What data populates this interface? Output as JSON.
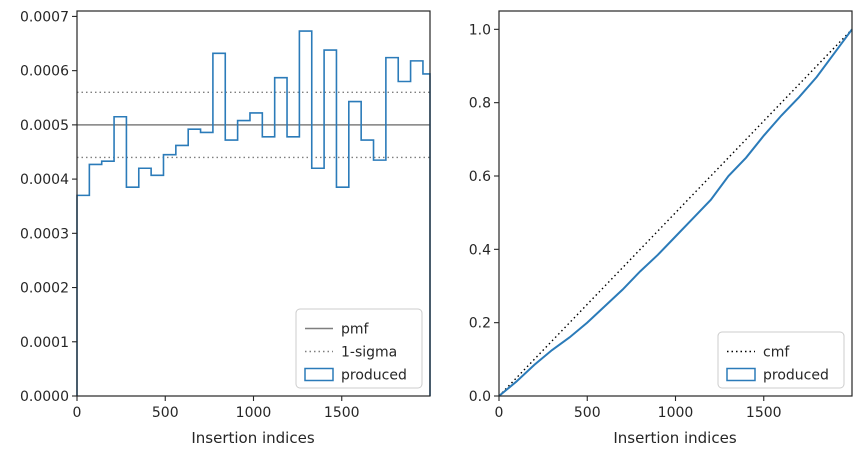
{
  "chart_data": [
    {
      "type": "step",
      "xlabel": "Insertion indices",
      "ylabel": "",
      "xlim": [
        0,
        2000
      ],
      "ylim": [
        0,
        0.00071
      ],
      "x_ticks": [
        0,
        500,
        1000,
        1500
      ],
      "x_tick_labels": [
        "0",
        "500",
        "1000",
        "1500"
      ],
      "y_ticks": [
        0,
        0.0001,
        0.0002,
        0.0003,
        0.0004,
        0.0005,
        0.0006,
        0.0007
      ],
      "y_tick_labels": [
        "0.0000",
        "0.0001",
        "0.0002",
        "0.0003",
        "0.0004",
        "0.0005",
        "0.0006",
        "0.0007"
      ],
      "hlines": [
        {
          "name": "pmf",
          "y": 0.0005,
          "style": "solid",
          "color": "#7f7f7f"
        },
        {
          "name": "1-sigma",
          "y": 0.00056,
          "style": "dotted",
          "color": "#7f7f7f"
        },
        {
          "name": "1-sigma",
          "y": 0.00044,
          "style": "dotted",
          "color": "#7f7f7f"
        }
      ],
      "histogram": {
        "name": "produced",
        "color": "#2b7bb9",
        "bin_edges": [
          0,
          70,
          140,
          210,
          280,
          350,
          420,
          490,
          560,
          630,
          700,
          770,
          840,
          910,
          980,
          1050,
          1120,
          1190,
          1260,
          1330,
          1400,
          1470,
          1540,
          1610,
          1680,
          1750,
          1820,
          1890,
          1960,
          2000
        ],
        "values": [
          0.00037,
          0.000427,
          0.000433,
          0.000515,
          0.000385,
          0.00042,
          0.000407,
          0.000445,
          0.000462,
          0.000492,
          0.000486,
          0.000632,
          0.000472,
          0.000508,
          0.000522,
          0.000478,
          0.000587,
          0.000478,
          0.000673,
          0.00042,
          0.000638,
          0.000385,
          0.000543,
          0.000472,
          0.000435,
          0.000624,
          0.00058,
          0.000618,
          0.000594
        ]
      },
      "legend": {
        "location": "lower right",
        "entries": [
          {
            "label": "pmf",
            "style": "solid-line"
          },
          {
            "label": "1-sigma",
            "style": "dotted-line"
          },
          {
            "label": "produced",
            "style": "step-box"
          }
        ]
      },
      "grid": false
    },
    {
      "type": "line",
      "xlabel": "Insertion indices",
      "ylabel": "",
      "xlim": [
        0,
        2000
      ],
      "ylim": [
        0,
        1.05
      ],
      "x_ticks": [
        0,
        500,
        1000,
        1500
      ],
      "x_tick_labels": [
        "0",
        "500",
        "1000",
        "1500"
      ],
      "y_ticks": [
        0,
        0.2,
        0.4,
        0.6,
        0.8,
        1.0
      ],
      "y_tick_labels": [
        "0.0",
        "0.2",
        "0.4",
        "0.6",
        "0.8",
        "1.0"
      ],
      "series": [
        {
          "name": "cmf",
          "style": "dotted",
          "color": "#000000",
          "x": [
            0,
            2000
          ],
          "y": [
            0,
            1.0
          ]
        },
        {
          "name": "produced",
          "style": "solid",
          "color": "#2b7bb9",
          "x": [
            0,
            100,
            200,
            300,
            400,
            500,
            600,
            700,
            800,
            900,
            1000,
            1100,
            1200,
            1300,
            1400,
            1500,
            1600,
            1700,
            1800,
            1900,
            2000
          ],
          "y": [
            0,
            0.04,
            0.085,
            0.125,
            0.16,
            0.2,
            0.245,
            0.29,
            0.34,
            0.385,
            0.435,
            0.485,
            0.535,
            0.6,
            0.65,
            0.71,
            0.765,
            0.815,
            0.87,
            0.935,
            1.0
          ]
        }
      ],
      "legend": {
        "location": "lower right",
        "entries": [
          {
            "label": "cmf",
            "style": "dotted-line"
          },
          {
            "label": "produced",
            "style": "step-box"
          }
        ]
      },
      "grid": false
    }
  ]
}
